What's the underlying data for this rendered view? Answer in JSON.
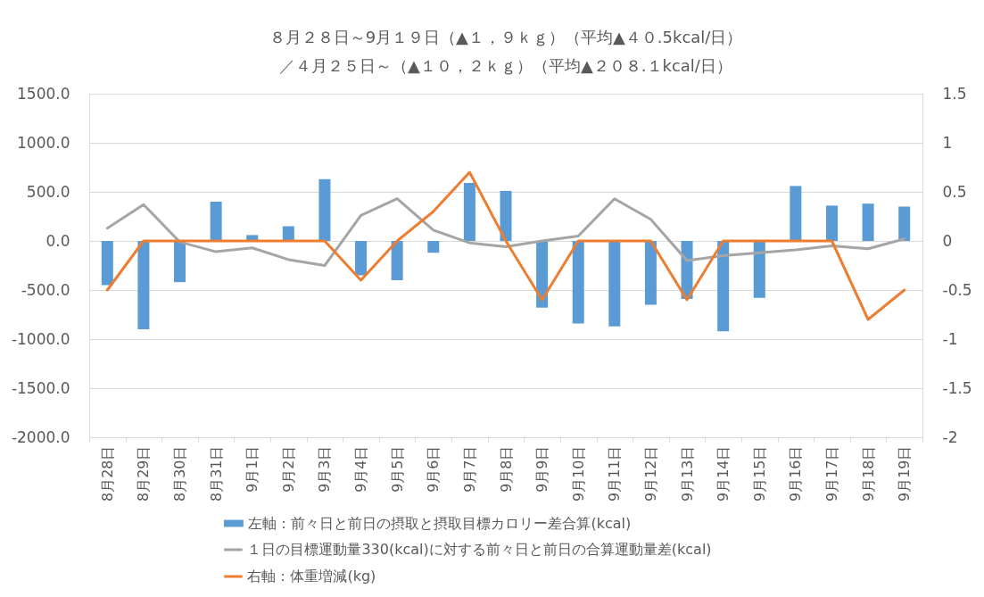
{
  "chart_data": {
    "type": "bar",
    "title": "８月２８日～9月１９日（▲１，９ｋｇ）（平均▲４０.5kcal/日）",
    "subtitle": "／４月２５日～（▲１０，２ｋｇ）（平均▲２０８.１kcal/日）",
    "categories": [
      "8月28日",
      "8月29日",
      "8月30日",
      "8月31日",
      "9月1日",
      "9月2日",
      "9月3日",
      "9月4日",
      "9月5日",
      "9月6日",
      "9月7日",
      "9月8日",
      "9月9日",
      "9月10日",
      "9月11日",
      "9月12日",
      "9月13日",
      "9月14日",
      "9月15日",
      "9月16日",
      "9月17日",
      "9月18日",
      "9月19日"
    ],
    "series": [
      {
        "name": "左軸：前々日と前日の摂取と摂取目標カロリー差合算(kcal)",
        "color": "#5b9bd5",
        "values": [
          -450,
          -900,
          -420,
          400,
          60,
          150,
          630,
          -350,
          -400,
          -120,
          590,
          510,
          -680,
          -840,
          -870,
          -650,
          -590,
          -920,
          -580,
          560,
          360,
          380,
          350
        ]
      },
      {
        "name": "１日の目標運動量330(kcal)に対する前々日と前日の合算運動量差(kcal)",
        "type": "line",
        "color": "#a5a5a5",
        "values": [
          130,
          370,
          -10,
          -110,
          -70,
          -190,
          -250,
          260,
          430,
          110,
          -20,
          -60,
          0,
          50,
          430,
          220,
          -200,
          -150,
          -120,
          -90,
          -50,
          -80,
          20
        ]
      },
      {
        "name": "右軸：体重増減(kg)",
        "type": "line",
        "color": "#ed7d31",
        "axis": "y2",
        "values": [
          -0.5,
          0,
          0,
          0,
          0,
          0,
          0,
          -0.4,
          0,
          0.3,
          0.7,
          0,
          -0.6,
          0,
          0,
          0,
          -0.6,
          0,
          0,
          0,
          0,
          -0.8,
          -0.5
        ]
      }
    ],
    "ylim": [
      -2000,
      1500
    ],
    "yticks": [
      {
        "value": 1500,
        "label": "1500.0"
      },
      {
        "value": 1000,
        "label": "1000.0"
      },
      {
        "value": 500,
        "label": "500.0"
      },
      {
        "value": 0,
        "label": "0.0"
      },
      {
        "value": -500,
        "label": "-500.0"
      },
      {
        "value": -1000,
        "label": "-1000.0"
      },
      {
        "value": -1500,
        "label": "-1500.0"
      },
      {
        "value": -2000,
        "label": "-2000.0"
      }
    ],
    "y2lim": [
      -2,
      1.5
    ],
    "y2ticks": [
      1.5,
      1,
      0.5,
      0,
      -0.5,
      -1,
      -1.5,
      -2
    ],
    "grid": "y",
    "legend": "bottom"
  }
}
